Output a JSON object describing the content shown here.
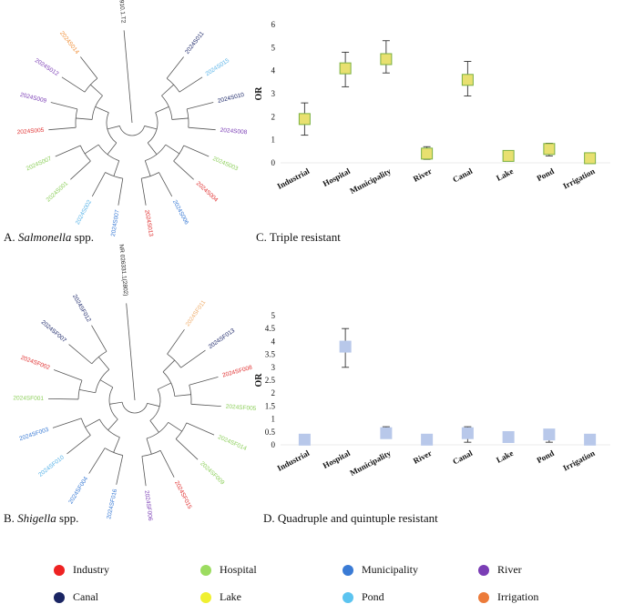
{
  "figure": {
    "captions": [
      {
        "prefix": "A. ",
        "italic": "Salmonella",
        "suffix": " spp."
      },
      {
        "prefix": "B. ",
        "italic": "Shigella",
        "suffix": " spp."
      }
    ],
    "chart_captions": [
      "C. Triple resistant",
      "D. Quadruple and quintuple resistant"
    ]
  },
  "trees": [
    {
      "reference": "NR 074910.1.T2",
      "leaves": [
        {
          "label": "2024S011",
          "color": "#1f2a6b"
        },
        {
          "label": "2024S015",
          "color": "#5ab4e8"
        },
        {
          "label": "2024S010",
          "color": "#1f2a6b"
        },
        {
          "label": "2024S008",
          "color": "#7a3db5"
        },
        {
          "label": "2024S003",
          "color": "#8ccf5a"
        },
        {
          "label": "2024S004",
          "color": "#e03030"
        },
        {
          "label": "2024S006",
          "color": "#3a7bd5"
        },
        {
          "label": "2024S013",
          "color": "#e03030"
        },
        {
          "label": "2024S007",
          "color": "#3a7bd5"
        },
        {
          "label": "2024S002",
          "color": "#5ab4e8"
        },
        {
          "label": "2024S001",
          "color": "#8ccf5a"
        },
        {
          "label": "2024S007",
          "color": "#8ccf5a"
        },
        {
          "label": "2024S005",
          "color": "#e03030"
        },
        {
          "label": "2024S009",
          "color": "#7a3db5"
        },
        {
          "label": "2024S012",
          "color": "#7a3db5"
        },
        {
          "label": "2024S014",
          "color": "#f0903a"
        }
      ]
    },
    {
      "reference": "NR 026331.1(2802)",
      "leaves": [
        {
          "label": "2024SF011",
          "color": "#f0b070"
        },
        {
          "label": "2024SF013",
          "color": "#1f2a6b"
        },
        {
          "label": "2024SF008",
          "color": "#e03030"
        },
        {
          "label": "2024SF005",
          "color": "#8ccf5a"
        },
        {
          "label": "2024SF014",
          "color": "#8ccf5a"
        },
        {
          "label": "2024SF009",
          "color": "#8ccf5a"
        },
        {
          "label": "2024SF015",
          "color": "#e03030"
        },
        {
          "label": "2024SF006",
          "color": "#7a3db5"
        },
        {
          "label": "2024SF016",
          "color": "#3a7bd5"
        },
        {
          "label": "2024SF004",
          "color": "#3a7bd5"
        },
        {
          "label": "2024SF010",
          "color": "#5ab4e8"
        },
        {
          "label": "2024SF003",
          "color": "#3a7bd5"
        },
        {
          "label": "2024SF001",
          "color": "#8ccf5a"
        },
        {
          "label": "2024SF002",
          "color": "#e03030"
        },
        {
          "label": "2024SF007",
          "color": "#1f2a6b"
        },
        {
          "label": "2024SF012",
          "color": "#1f2a6b"
        }
      ]
    }
  ],
  "chart_data": [
    {
      "type": "scatter",
      "title": "C. Triple resistant",
      "ylabel": "OR",
      "xlabel": "",
      "categories": [
        "Industrial",
        "Hospital",
        "Municipality",
        "River",
        "Canal",
        "Lake",
        "Pond",
        "Irrigation"
      ],
      "values": [
        1.9,
        4.1,
        4.5,
        0.4,
        3.6,
        0.3,
        0.6,
        0.2
      ],
      "error_low": [
        1.2,
        3.3,
        3.9,
        0.15,
        2.9,
        null,
        0.3,
        null
      ],
      "error_high": [
        2.6,
        4.8,
        5.3,
        0.7,
        4.4,
        null,
        0.85,
        null
      ],
      "ylim": [
        0,
        6
      ],
      "yticks": [
        0,
        1,
        2,
        3,
        4,
        5,
        6
      ],
      "marker_fill": "#e8e070",
      "marker_stroke": "#7ab040",
      "grid": false
    },
    {
      "type": "scatter",
      "title": "D. Quadruple and quintuple resistant",
      "ylabel": "OR",
      "xlabel": "",
      "categories": [
        "Industrial",
        "Hospital",
        "Municipality",
        "River",
        "Canal",
        "Lake",
        "Pond",
        "Irrigation"
      ],
      "values": [
        0.2,
        3.8,
        0.45,
        0.2,
        0.45,
        0.3,
        0.4,
        0.2
      ],
      "error_low": [
        null,
        3.0,
        null,
        null,
        0.1,
        null,
        0.1,
        null
      ],
      "error_high": [
        null,
        4.5,
        0.7,
        null,
        0.7,
        null,
        null,
        null
      ],
      "ylim": [
        0,
        5
      ],
      "yticks": [
        0,
        0.5,
        1,
        1.5,
        2,
        2.5,
        3,
        3.5,
        4,
        4.5,
        5
      ],
      "marker_fill": "#b8c8ea",
      "marker_stroke": "#b8c8ea",
      "grid": false
    }
  ],
  "legend": {
    "items": [
      {
        "label": "Industry",
        "color": "#ee2222"
      },
      {
        "label": "Hospital",
        "color": "#9cdc60"
      },
      {
        "label": "Municipality",
        "color": "#3a7bd5"
      },
      {
        "label": "River",
        "color": "#7a3db5"
      },
      {
        "label": "Canal",
        "color": "#1a2563"
      },
      {
        "label": "Lake",
        "color": "#f0f030"
      },
      {
        "label": "Pond",
        "color": "#5cc4f0"
      },
      {
        "label": "Irrigation",
        "color": "#ec7b3a"
      }
    ]
  }
}
